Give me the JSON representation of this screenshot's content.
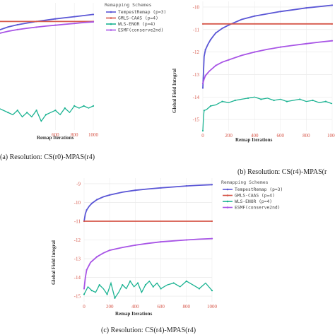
{
  "chart_data": [
    {
      "type": "line",
      "caption": "(a) Resolution: CS(r0)-MPAS(r4)",
      "xlabel": "Remap Iterations",
      "ylabel": "",
      "xticks": [
        "600",
        "800",
        "1000"
      ],
      "yticks": [],
      "legend": {
        "title": "Remapping Schemes",
        "placement": "right",
        "entries": [
          "TempestRemap (p=3)",
          "GMLS-CAAS (p=4)",
          "WLS-ENOR (p=4)",
          "ESMF(conserve2nd)"
        ]
      },
      "xlim": [
        0,
        1000
      ],
      "ylim": [
        -15.3,
        -9.5
      ],
      "series": [
        {
          "name": "TempestRemap (p=3)",
          "color": "#5b57d6",
          "x": [
            0,
            100,
            200,
            300,
            400,
            500,
            600,
            700,
            800,
            900,
            1000
          ],
          "y": [
            -10.75,
            -10.6,
            -10.5,
            -10.42,
            -10.35,
            -10.29,
            -10.23,
            -10.18,
            -10.13,
            -10.08,
            -10.03
          ]
        },
        {
          "name": "GMLS-CAAS (p=4)",
          "color": "#d6574a",
          "x": [
            0,
            1000
          ],
          "y": [
            -10.35,
            -10.35
          ]
        },
        {
          "name": "WLS-ENOR (p=4)",
          "color": "#1bb392",
          "x": [
            0,
            50,
            100,
            150,
            200,
            250,
            300,
            350,
            400,
            450,
            500,
            550,
            600,
            650,
            700,
            750,
            800,
            850,
            900,
            950,
            1000
          ],
          "y": [
            -14.3,
            -14.4,
            -14.5,
            -14.6,
            -14.4,
            -14.7,
            -14.5,
            -14.7,
            -14.4,
            -14.9,
            -14.6,
            -14.5,
            -14.4,
            -14.6,
            -14.3,
            -14.5,
            -14.2,
            -14.3,
            -14.2,
            -14.3,
            -14.2
          ]
        },
        {
          "name": "ESMF(conserve2nd)",
          "color": "#a855e6",
          "x": [
            0,
            100,
            200,
            300,
            400,
            500,
            600,
            700,
            800,
            900,
            1000
          ],
          "y": [
            -10.9,
            -10.8,
            -10.72,
            -10.66,
            -10.61,
            -10.56,
            -10.52,
            -10.48,
            -10.44,
            -10.4,
            -10.37
          ]
        }
      ]
    },
    {
      "type": "line",
      "caption": "(b) Resolution: CS(r4)-MPAS(r",
      "xlabel": "Remap Iterations",
      "ylabel": "Global Field Integral",
      "xticks": [
        "0",
        "200",
        "400",
        "600",
        "800",
        "1000"
      ],
      "yticks": [
        "-10",
        "-11",
        "-12",
        "-13",
        "-14",
        "-15"
      ],
      "xlim": [
        0,
        1000
      ],
      "ylim": [
        -15.5,
        -9.75
      ],
      "series": [
        {
          "name": "TempestRemap (p=3)",
          "color": "#5b57d6",
          "x": [
            0,
            10,
            20,
            40,
            60,
            80,
            100,
            150,
            200,
            300,
            400,
            500,
            600,
            700,
            800,
            900,
            1000
          ],
          "y": [
            -13.6,
            -12.2,
            -11.9,
            -11.65,
            -11.45,
            -11.3,
            -11.15,
            -10.95,
            -10.8,
            -10.55,
            -10.4,
            -10.3,
            -10.2,
            -10.12,
            -10.04,
            -9.98,
            -9.92
          ]
        },
        {
          "name": "GMLS-CAAS (p=4)",
          "color": "#d6574a",
          "x": [
            0,
            1000
          ],
          "y": [
            -10.75,
            -10.75
          ]
        },
        {
          "name": "WLS-ENOR (p=4)",
          "color": "#1bb392",
          "x": [
            0,
            5,
            10,
            30,
            60,
            100,
            150,
            200,
            250,
            300,
            350,
            400,
            450,
            500,
            550,
            600,
            650,
            700,
            750,
            800,
            850,
            900,
            950,
            1000
          ],
          "y": [
            -15.5,
            -14.9,
            -14.6,
            -14.55,
            -14.4,
            -14.35,
            -14.2,
            -14.25,
            -14.15,
            -14.1,
            -14.05,
            -14.0,
            -14.1,
            -14.05,
            -14.15,
            -14.1,
            -14.2,
            -14.15,
            -14.1,
            -14.2,
            -14.15,
            -14.25,
            -14.2,
            -14.3
          ]
        },
        {
          "name": "ESMF(conserve2nd)",
          "color": "#a855e6",
          "x": [
            0,
            10,
            20,
            50,
            100,
            150,
            200,
            300,
            400,
            500,
            600,
            700,
            800,
            900,
            1000
          ],
          "y": [
            -13.4,
            -13.2,
            -13.05,
            -12.85,
            -12.6,
            -12.45,
            -12.35,
            -12.15,
            -12.0,
            -11.88,
            -11.78,
            -11.7,
            -11.63,
            -11.56,
            -11.5
          ]
        }
      ]
    },
    {
      "type": "line",
      "caption": "(c) Resolution: CS(r4)-MPAS(r4)",
      "xlabel": "Remap Iterations",
      "ylabel": "Global Field Integral",
      "xticks": [
        "0",
        "200",
        "400",
        "600",
        "800",
        "1000"
      ],
      "yticks": [
        "-9",
        "-10",
        "-11",
        "-12",
        "-13",
        "-14",
        "-15"
      ],
      "legend": {
        "title": "Remapping Schemes",
        "placement": "right",
        "entries": [
          "TempestRemap (p=3)",
          "GMLS-CAAS (p=4)",
          "WLS-ENOR (p=4)",
          "ESMF(conserve2nd)"
        ]
      },
      "xlim": [
        0,
        1000
      ],
      "ylim": [
        -15.3,
        -8.7
      ],
      "series": [
        {
          "name": "TempestRemap (p=3)",
          "color": "#5b57d6",
          "x": [
            0,
            10,
            20,
            40,
            60,
            80,
            100,
            150,
            200,
            300,
            400,
            500,
            600,
            700,
            800,
            900,
            1000
          ],
          "y": [
            -11.0,
            -10.6,
            -10.4,
            -10.2,
            -10.05,
            -9.95,
            -9.85,
            -9.7,
            -9.6,
            -9.45,
            -9.35,
            -9.28,
            -9.22,
            -9.17,
            -9.12,
            -9.08,
            -9.05
          ]
        },
        {
          "name": "GMLS-CAAS (p=4)",
          "color": "#d6574a",
          "x": [
            0,
            1000
          ],
          "y": [
            -11.0,
            -11.0
          ]
        },
        {
          "name": "WLS-ENOR (p=4)",
          "color": "#1bb392",
          "x": [
            0,
            30,
            60,
            90,
            120,
            150,
            180,
            210,
            240,
            270,
            300,
            330,
            360,
            390,
            420,
            450,
            480,
            510,
            540,
            570,
            600,
            650,
            700,
            750,
            800,
            850,
            900,
            950,
            1000
          ],
          "y": [
            -14.9,
            -14.5,
            -14.7,
            -14.8,
            -14.4,
            -14.6,
            -14.9,
            -14.3,
            -15.1,
            -14.8,
            -14.4,
            -14.6,
            -14.2,
            -14.5,
            -14.3,
            -14.8,
            -14.4,
            -14.2,
            -14.5,
            -14.3,
            -14.6,
            -14.4,
            -14.3,
            -14.5,
            -14.2,
            -14.4,
            -14.6,
            -14.3,
            -14.7
          ]
        },
        {
          "name": "ESMF(conserve2nd)",
          "color": "#a855e6",
          "x": [
            0,
            10,
            20,
            50,
            100,
            150,
            200,
            300,
            400,
            500,
            600,
            700,
            800,
            900,
            1000
          ],
          "y": [
            -14.6,
            -14.0,
            -13.6,
            -13.2,
            -12.9,
            -12.7,
            -12.55,
            -12.4,
            -12.28,
            -12.18,
            -12.1,
            -12.05,
            -12.0,
            -11.96,
            -11.93
          ]
        }
      ]
    }
  ]
}
